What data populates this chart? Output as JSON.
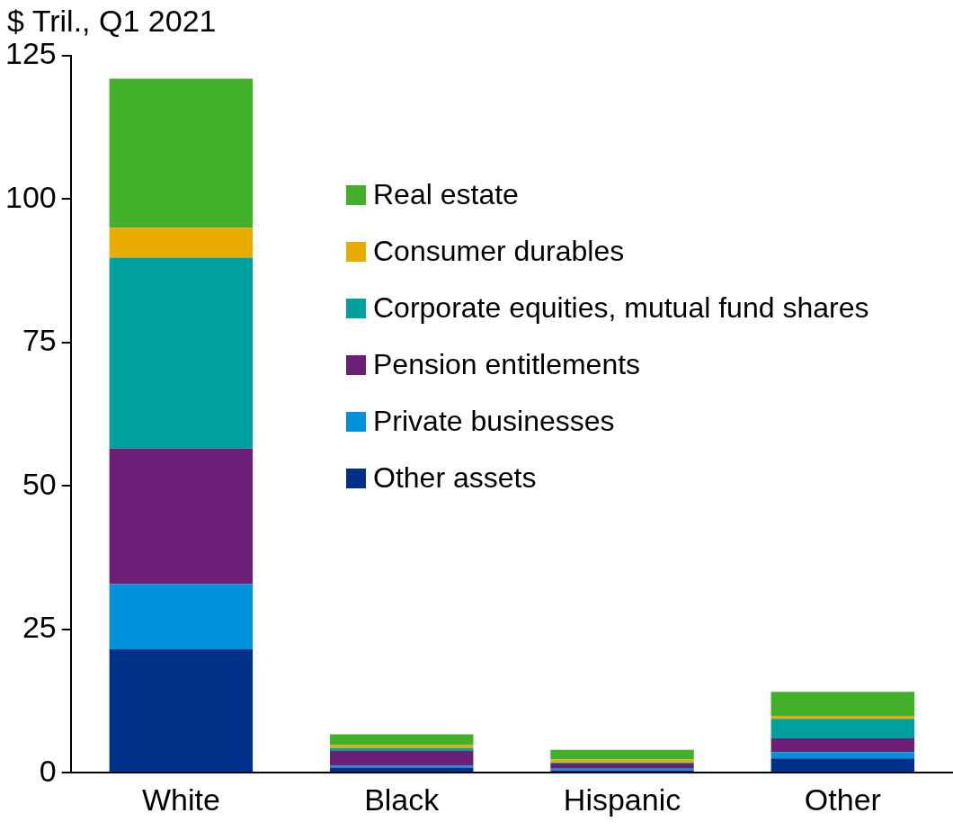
{
  "chart_data": {
    "type": "bar",
    "ylabel": "$ Tril., Q1 2021",
    "categories": [
      "White",
      "Black",
      "Hispanic",
      "Other"
    ],
    "stacked": true,
    "ylim": [
      0,
      125
    ],
    "yticks": [
      0,
      25,
      50,
      75,
      100,
      125
    ],
    "grid": false,
    "legend": "right",
    "series": [
      {
        "name": "Other assets",
        "color": "#003087",
        "values": [
          21.5,
          0.9,
          0.4,
          2.5
        ]
      },
      {
        "name": "Private businesses",
        "color": "#0091da",
        "values": [
          11.4,
          0.3,
          0.3,
          1.1
        ]
      },
      {
        "name": "Pension entitlements",
        "color": "#6c1f76",
        "values": [
          23.6,
          2.6,
          0.9,
          2.4
        ]
      },
      {
        "name": "Corporate equities, mutual fund shares",
        "color": "#00a19c",
        "values": [
          33.3,
          0.5,
          0.2,
          3.4
        ]
      },
      {
        "name": "Consumer durables",
        "color": "#eaab00",
        "values": [
          5.2,
          0.5,
          0.5,
          0.5
        ]
      },
      {
        "name": "Real estate",
        "color": "#43b02a",
        "values": [
          26.0,
          1.9,
          1.7,
          4.2
        ]
      }
    ]
  }
}
